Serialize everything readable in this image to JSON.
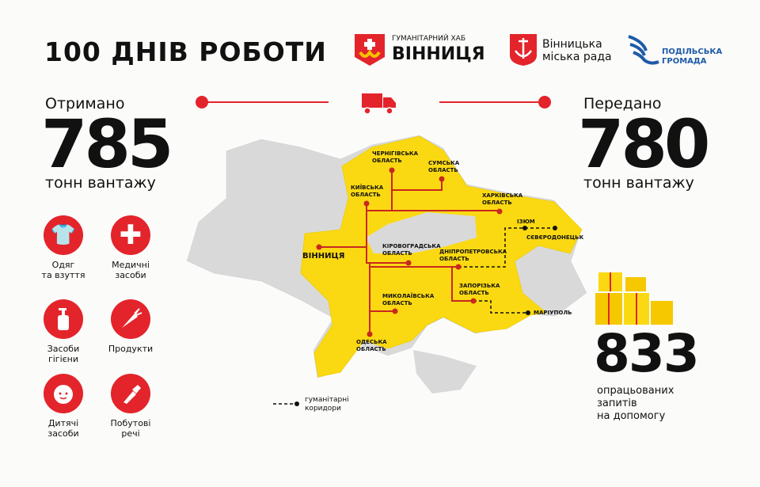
{
  "title": "100 ДНІВ РОБОТИ",
  "logos": {
    "hub_top": "ГУМАНІТАРНИЙ ХАБ",
    "hub_main": "ВІННИЦЯ",
    "council_line1": "Вінницька",
    "council_line2": "міська рада",
    "podillia_line1": "ПОДІЛЬСЬКА",
    "podillia_line2": "ГРОМАДА"
  },
  "received": {
    "label": "Отримано",
    "value": "785",
    "unit": "тонн вантажу"
  },
  "transferred": {
    "label": "Передано",
    "value": "780",
    "unit": "тонн вантажу"
  },
  "requests": {
    "value": "833",
    "line1": "опрацьованих",
    "line2": "запитів",
    "line3": "на допомогу"
  },
  "categories": [
    {
      "icon": "t-shirt-icon",
      "line1": "Одяг",
      "line2": "та взуття"
    },
    {
      "icon": "medical-cross-icon",
      "line1": "Медичні",
      "line2": "засоби"
    },
    {
      "icon": "hygiene-bottle-icon",
      "line1": "Засоби",
      "line2": "гігієни"
    },
    {
      "icon": "carrot-icon",
      "line1": "Продукти",
      "line2": ""
    },
    {
      "icon": "baby-face-icon",
      "line1": "Дитячі",
      "line2": "засоби"
    },
    {
      "icon": "flashlight-icon",
      "line1": "Побутові",
      "line2": "речі"
    }
  ],
  "map": {
    "colors": {
      "served": "#fbd912",
      "other": "#d9d9d9",
      "route": "#c8281e",
      "accent": "#e3242b",
      "corridor": "#111111"
    },
    "labels": {
      "chernihiv": "ЧЕРНІГІВСЬКА\nОБЛАСТЬ",
      "sumy": "СУМСЬКА\nОБЛАСТЬ",
      "kyiv": "КИЇВСЬКА\nОБЛАСТЬ",
      "kharkiv": "ХАРКІВСЬКА\nОБЛАСТЬ",
      "izium": "ІЗЮМ",
      "sievierodonetsk": "СЄВЄРОДОНЕЦЬК",
      "vinnytsia": "ВІННИЦЯ",
      "kirovohrad": "КІРОВОГРАДСЬКА\nОБЛАСТЬ",
      "dnipro": "ДНІПРОПЕТРОВСЬКА\nОБЛАСТЬ",
      "zaporizhzhia": "ЗАПОРІЗЬКА\nОБЛАСТЬ",
      "mariupol": "МАРІУПОЛЬ",
      "mykolaiv": "МИКОЛАЇВСЬКА\nОБЛАСТЬ",
      "odesa": "ОДЕСЬКА\nОБЛАСТЬ"
    },
    "legend": {
      "line1": "гуманітарні",
      "line2": "коридори"
    }
  }
}
